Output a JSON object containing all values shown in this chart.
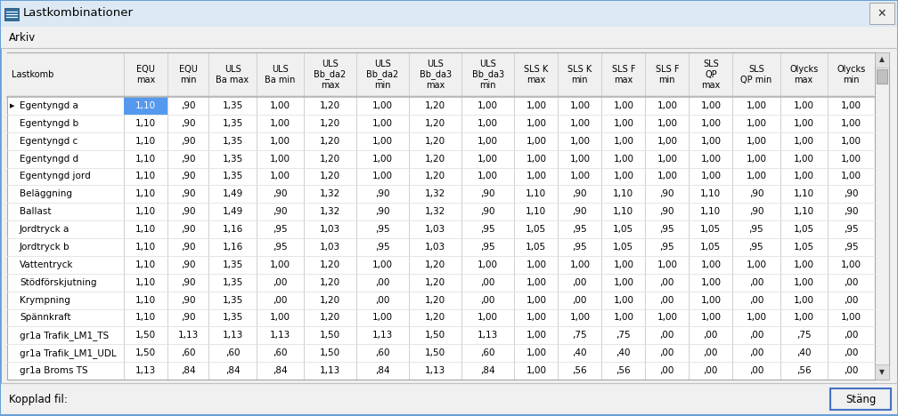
{
  "title": "Lastkombinationer",
  "menu": "Arkiv",
  "footer_label": "Kopplad fil:",
  "footer_button": "Stäng",
  "col_headers": [
    "Lastkomb",
    "EQU\nmax",
    "EQU\nmin",
    "ULS\nBa max",
    "ULS\nBa min",
    "ULS\nBb_da2\nmax",
    "ULS\nBb_da2\nmin",
    "ULS\nBb_da3\nmax",
    "ULS\nBb_da3\nmin",
    "SLS K\nmax",
    "SLS K\nmin",
    "SLS F\nmax",
    "SLS F\nmin",
    "SLS\nQP\nmax",
    "SLS\nQP min",
    "Olycks\nmax",
    "Olycks\nmin"
  ],
  "rows": [
    [
      "Egentyngd a",
      "1,10",
      ",90",
      "1,35",
      "1,00",
      "1,20",
      "1,00",
      "1,20",
      "1,00",
      "1,00",
      "1,00",
      "1,00",
      "1,00",
      "1,00",
      "1,00",
      "1,00",
      "1,00"
    ],
    [
      "Egentyngd b",
      "1,10",
      ",90",
      "1,35",
      "1,00",
      "1,20",
      "1,00",
      "1,20",
      "1,00",
      "1,00",
      "1,00",
      "1,00",
      "1,00",
      "1,00",
      "1,00",
      "1,00",
      "1,00"
    ],
    [
      "Egentyngd c",
      "1,10",
      ",90",
      "1,35",
      "1,00",
      "1,20",
      "1,00",
      "1,20",
      "1,00",
      "1,00",
      "1,00",
      "1,00",
      "1,00",
      "1,00",
      "1,00",
      "1,00",
      "1,00"
    ],
    [
      "Egentyngd d",
      "1,10",
      ",90",
      "1,35",
      "1,00",
      "1,20",
      "1,00",
      "1,20",
      "1,00",
      "1,00",
      "1,00",
      "1,00",
      "1,00",
      "1,00",
      "1,00",
      "1,00",
      "1,00"
    ],
    [
      "Egentyngd jord",
      "1,10",
      ",90",
      "1,35",
      "1,00",
      "1,20",
      "1,00",
      "1,20",
      "1,00",
      "1,00",
      "1,00",
      "1,00",
      "1,00",
      "1,00",
      "1,00",
      "1,00",
      "1,00"
    ],
    [
      "Beläggning",
      "1,10",
      ",90",
      "1,49",
      ",90",
      "1,32",
      ",90",
      "1,32",
      ",90",
      "1,10",
      ",90",
      "1,10",
      ",90",
      "1,10",
      ",90",
      "1,10",
      ",90"
    ],
    [
      "Ballast",
      "1,10",
      ",90",
      "1,49",
      ",90",
      "1,32",
      ",90",
      "1,32",
      ",90",
      "1,10",
      ",90",
      "1,10",
      ",90",
      "1,10",
      ",90",
      "1,10",
      ",90"
    ],
    [
      "Jordtryck a",
      "1,10",
      ",90",
      "1,16",
      ",95",
      "1,03",
      ",95",
      "1,03",
      ",95",
      "1,05",
      ",95",
      "1,05",
      ",95",
      "1,05",
      ",95",
      "1,05",
      ",95"
    ],
    [
      "Jordtryck b",
      "1,10",
      ",90",
      "1,16",
      ",95",
      "1,03",
      ",95",
      "1,03",
      ",95",
      "1,05",
      ",95",
      "1,05",
      ",95",
      "1,05",
      ",95",
      "1,05",
      ",95"
    ],
    [
      "Vattentryck",
      "1,10",
      ",90",
      "1,35",
      "1,00",
      "1,20",
      "1,00",
      "1,20",
      "1,00",
      "1,00",
      "1,00",
      "1,00",
      "1,00",
      "1,00",
      "1,00",
      "1,00",
      "1,00"
    ],
    [
      "Stödförskjutning",
      "1,10",
      ",90",
      "1,35",
      ",00",
      "1,20",
      ",00",
      "1,20",
      ",00",
      "1,00",
      ",00",
      "1,00",
      ",00",
      "1,00",
      ",00",
      "1,00",
      ",00"
    ],
    [
      "Krympning",
      "1,10",
      ",90",
      "1,35",
      ",00",
      "1,20",
      ",00",
      "1,20",
      ",00",
      "1,00",
      ",00",
      "1,00",
      ",00",
      "1,00",
      ",00",
      "1,00",
      ",00"
    ],
    [
      "Spännkraft",
      "1,10",
      ",90",
      "1,35",
      "1,00",
      "1,20",
      "1,00",
      "1,20",
      "1,00",
      "1,00",
      "1,00",
      "1,00",
      "1,00",
      "1,00",
      "1,00",
      "1,00",
      "1,00"
    ],
    [
      "gr1a Trafik_LM1_TS",
      "1,50",
      "1,13",
      "1,13",
      "1,13",
      "1,50",
      "1,13",
      "1,50",
      "1,13",
      "1,00",
      ",75",
      ",75",
      ",00",
      ",00",
      ",00",
      ",75",
      ",00"
    ],
    [
      "gr1a Trafik_LM1_UDL",
      "1,50",
      ",60",
      ",60",
      ",60",
      "1,50",
      ",60",
      "1,50",
      ",60",
      "1,00",
      ",40",
      ",40",
      ",00",
      ",00",
      ",00",
      ",40",
      ",00"
    ],
    [
      "gr1a Broms TS",
      "1,13",
      ",84",
      ",84",
      ",84",
      "1,13",
      ",84",
      "1,13",
      ",84",
      "1,00",
      ",56",
      ",56",
      ",00",
      ",00",
      ",00",
      ",56",
      ",00"
    ]
  ],
  "selected_row": 0,
  "selected_col": 1,
  "bg_color": "#f0f0f0",
  "table_bg": "#ffffff",
  "header_bg": "#f0f0f0",
  "selected_bg": "#5599ee",
  "selected_fg": "#ffffff",
  "grid_color": "#c8c8c8",
  "title_bar_bg": "#dce9f5",
  "col_widths": [
    1.55,
    0.58,
    0.55,
    0.63,
    0.63,
    0.7,
    0.7,
    0.7,
    0.7,
    0.58,
    0.58,
    0.58,
    0.58,
    0.58,
    0.63,
    0.63,
    0.63
  ]
}
